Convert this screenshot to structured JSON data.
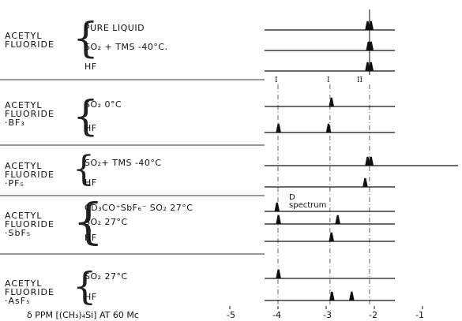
{
  "ppm_axis": {
    "label": "δ PPM [(CH₃)₄Si] AT 60 Mc",
    "ticks": [
      "-5",
      "-4",
      "-3",
      "-2",
      "-1"
    ]
  },
  "markers": [
    "I",
    "I",
    "II"
  ],
  "note": {
    "line1": "D",
    "line2": "spectrum"
  },
  "panels": [
    {
      "compound_line1": "ACETYL",
      "compound_line2": "FLUORIDE",
      "compound_line3": "",
      "spectra": [
        {
          "condition": "PURE LIQUID",
          "peaks_ppm": [
            -2.14,
            -2.07
          ]
        },
        {
          "condition": "SO₂ + TMS -40°C.",
          "peaks_ppm": [
            -2.12,
            -2.07
          ]
        },
        {
          "condition": "HF",
          "peaks_ppm": [
            -2.14,
            -2.07
          ]
        }
      ]
    },
    {
      "compound_line1": "ACETYL",
      "compound_line2": "FLUORIDE",
      "compound_line3": "·BF₃",
      "spectra": [
        {
          "condition": "SO₂ 0°C",
          "peaks_ppm": [
            -2.89
          ]
        },
        {
          "condition": "HF",
          "peaks_ppm": [
            -3.99,
            -2.95
          ]
        }
      ]
    },
    {
      "compound_line1": "ACETYL",
      "compound_line2": "FLUORIDE",
      "compound_line3": "·PF₅",
      "spectra": [
        {
          "condition": "SO₂+ TMS -40°C",
          "peaks_ppm": [
            -2.14,
            -2.07
          ]
        },
        {
          "condition": "HF",
          "peaks_ppm": [
            -2.19
          ]
        }
      ]
    },
    {
      "compound_line1": "ACETYL",
      "compound_line2": "FLUORIDE",
      "compound_line3": "·SbF₅",
      "spectra": [
        {
          "condition": "CD₃CO⁺SbF₆⁻  SO₂ 27°C",
          "peaks_ppm": [
            -4.02
          ]
        },
        {
          "condition": "SO₂ 27°C",
          "peaks_ppm": [
            -3.99,
            -2.76
          ]
        },
        {
          "condition": "HF",
          "peaks_ppm": [
            -2.89
          ]
        }
      ]
    },
    {
      "compound_line1": "ACETYL",
      "compound_line2": "FLUORIDE",
      "compound_line3": "·AsF₅",
      "spectra": [
        {
          "condition": "SO₂  27°C",
          "peaks_ppm": [
            -3.99
          ]
        },
        {
          "condition": "HF",
          "peaks_ppm": [
            -2.88,
            -2.47
          ]
        }
      ]
    }
  ]
}
